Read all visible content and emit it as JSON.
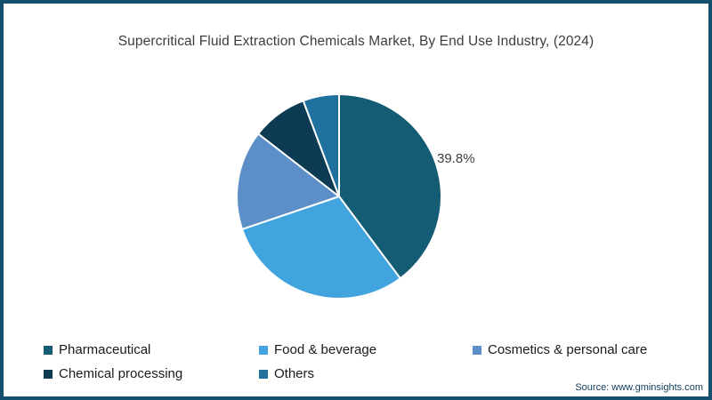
{
  "frame": {
    "border_color": "#14506E",
    "background_color": "#FFFFFF"
  },
  "source_note": "Source: www.gminsights.com",
  "chart_data": {
    "type": "pie",
    "title": "Supercritical Fluid Extraction Chemicals Market, By End Use Industry, (2024)",
    "labels": [
      "Pharmaceutical",
      "Food & beverage",
      "Cosmetics & personal care",
      "Chemical processing",
      "Others"
    ],
    "values": [
      39.8,
      30.0,
      15.7,
      8.8,
      5.7
    ],
    "colors": [
      "#135C74",
      "#41A4DE",
      "#5C8FC7",
      "#0C3B53",
      "#20719E"
    ],
    "data_labels": [
      "39.8%",
      "",
      "",
      "",
      ""
    ],
    "slice_separator_color": "#FFFFFF",
    "start_angle_deg": 0,
    "direction": "clockwise",
    "legend_position": "bottom"
  }
}
